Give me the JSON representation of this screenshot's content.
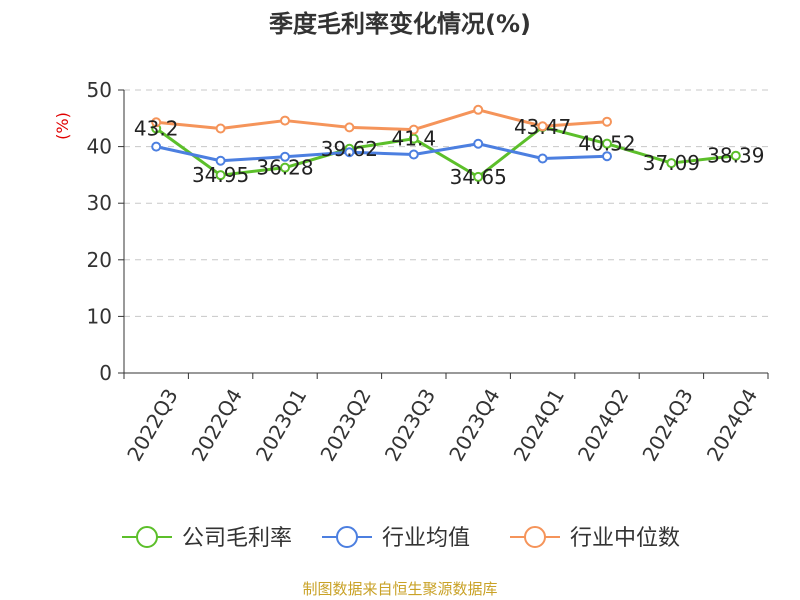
{
  "chart_data": {
    "type": "line",
    "title": "季度毛利率变化情况(%)",
    "ylabel": "(%)",
    "ylim": [
      0,
      50
    ],
    "yticks": [
      0,
      10,
      20,
      30,
      40,
      50
    ],
    "categories": [
      "2022Q3",
      "2022Q4",
      "2023Q1",
      "2023Q2",
      "2023Q3",
      "2023Q4",
      "2024Q1",
      "2024Q2",
      "2024Q3",
      "2024Q4"
    ],
    "grid": true,
    "legend": "bottom",
    "series": [
      {
        "name": "公司毛利率",
        "color": "#5cbf2a",
        "values": [
          43.2,
          34.95,
          36.28,
          39.62,
          41.4,
          34.65,
          43.47,
          40.52,
          37.09,
          38.39
        ],
        "labels": [
          "43.2",
          "34.95",
          "36.28",
          "39.62",
          "41.4",
          "34.65",
          "43.47",
          "40.52",
          "37.09",
          "38.39"
        ]
      },
      {
        "name": "行业均值",
        "color": "#4c7fe0",
        "values": [
          40.0,
          37.5,
          38.2,
          39.0,
          38.6,
          40.5,
          37.9,
          38.3,
          null,
          null
        ]
      },
      {
        "name": "行业中位数",
        "color": "#f5945a",
        "values": [
          44.3,
          43.2,
          44.6,
          43.4,
          43.0,
          46.5,
          43.6,
          44.4,
          null,
          null
        ]
      }
    ]
  },
  "source": "制图数据来自恒生聚源数据库"
}
